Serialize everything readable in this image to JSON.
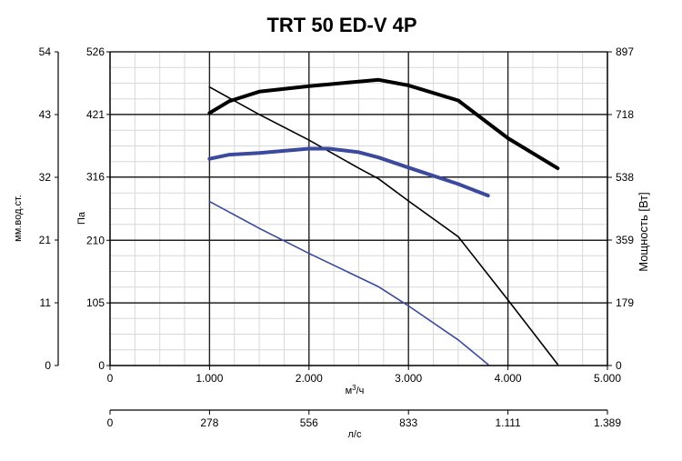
{
  "chart_data": {
    "type": "line",
    "title": "TRT 50 ED-V 4P",
    "x_axis": {
      "label_base": "м",
      "label_sup": "3",
      "label_tail": "/ч",
      "range": [
        0,
        5000
      ],
      "ticks": [
        0,
        1000,
        2000,
        3000,
        4000,
        5000
      ],
      "tick_labels": [
        "0",
        "1.000",
        "2.000",
        "3.000",
        "4.000",
        "5.000"
      ]
    },
    "x2_axis": {
      "label": "л/с",
      "range": [
        0,
        1389
      ],
      "tick_labels": [
        "0",
        "278",
        "556",
        "833",
        "1.111",
        "1.389"
      ]
    },
    "y_axis": {
      "label": "Па",
      "range": [
        0,
        526
      ],
      "ticks": [
        0,
        105,
        210,
        316,
        421,
        526
      ],
      "tick_labels": [
        "0",
        "105",
        "210",
        "316",
        "421",
        "526"
      ]
    },
    "y_outer_axis": {
      "label": "мм.вод.ст.",
      "tick_labels": [
        "0",
        "11",
        "21",
        "32",
        "43",
        "54"
      ]
    },
    "y_right_axis": {
      "label": "Мощность [Вт]",
      "range": [
        0,
        897
      ],
      "tick_labels": [
        "0",
        "179",
        "359",
        "538",
        "718",
        "897"
      ]
    },
    "grid": true,
    "series": [
      {
        "axis": "left",
        "color": "#000000",
        "width": 1.6,
        "x": [
          1000,
          1500,
          2000,
          2500,
          2700,
          3000,
          3500,
          4000,
          4500
        ],
        "y": [
          467,
          421,
          378,
          331,
          313,
          276,
          216,
          110,
          2
        ]
      },
      {
        "axis": "left",
        "color": "#3b4a9c",
        "width": 1.6,
        "x": [
          1000,
          1500,
          2000,
          2500,
          2700,
          3000,
          3500,
          3800
        ],
        "y": [
          275,
          230,
          188,
          148,
          132,
          100,
          43,
          2
        ]
      },
      {
        "axis": "right",
        "color": "#000000",
        "width": 4,
        "x": [
          1000,
          1200,
          1500,
          2000,
          2500,
          2700,
          3000,
          3500,
          4000,
          4500
        ],
        "y": [
          722,
          756,
          783,
          799,
          812,
          817,
          801,
          758,
          650,
          564
        ]
      },
      {
        "axis": "right",
        "color": "#3b4a9c",
        "width": 4,
        "x": [
          1000,
          1200,
          1500,
          2000,
          2200,
          2500,
          2700,
          3000,
          3500,
          3800
        ],
        "y": [
          591,
          603,
          608,
          620,
          620,
          610,
          595,
          566,
          519,
          486
        ]
      }
    ]
  }
}
